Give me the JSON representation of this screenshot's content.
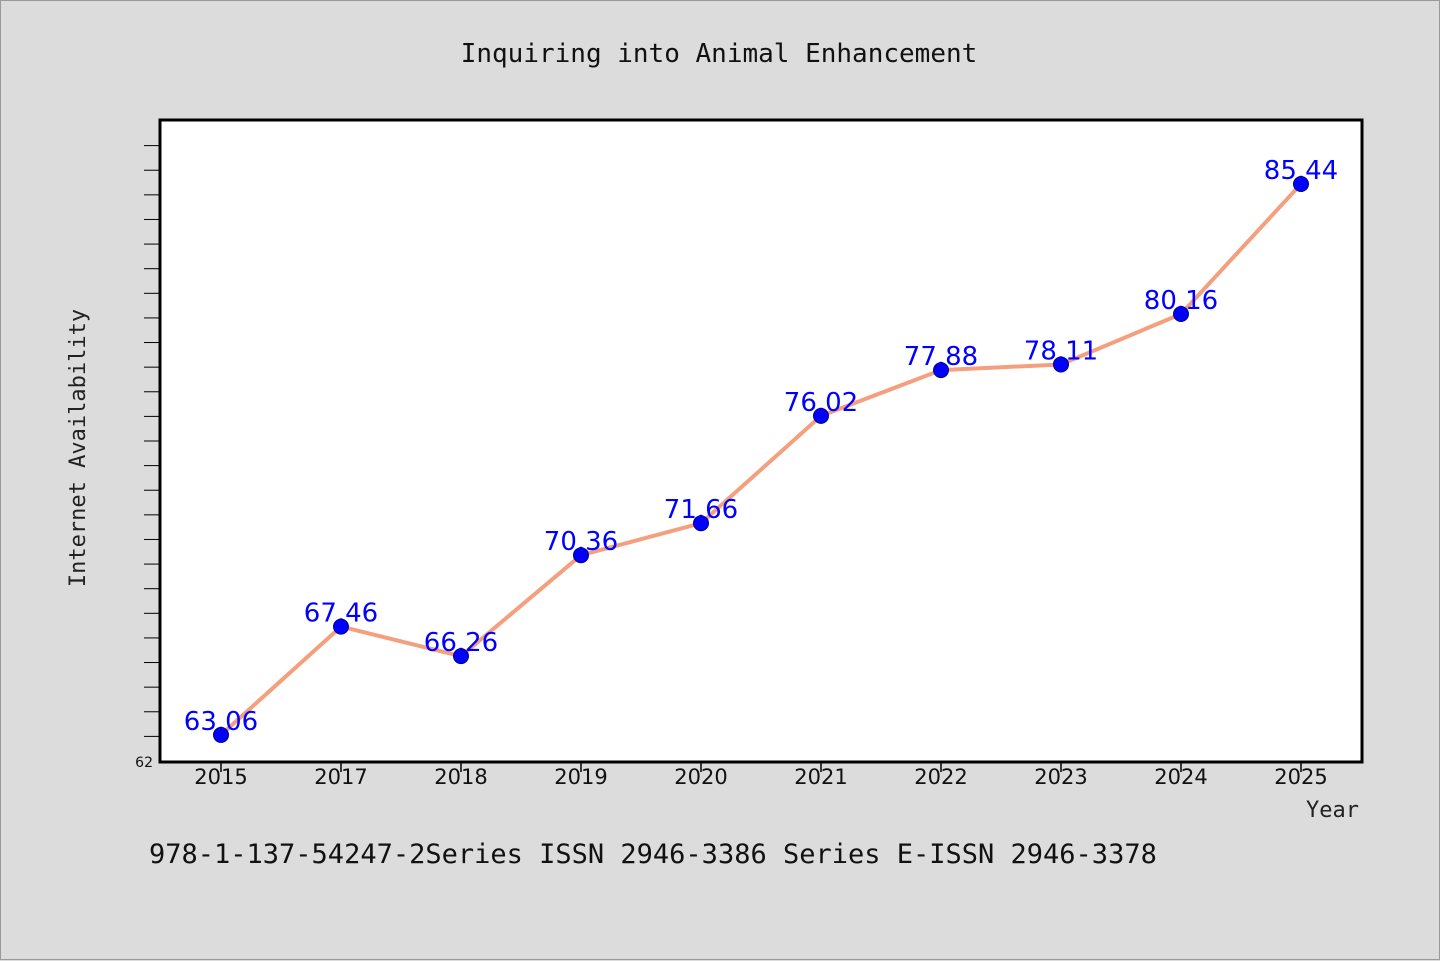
{
  "colors": {
    "background": "#dcdcdc",
    "plot_background": "#ffffff",
    "line": "#f4a07f",
    "marker": "#0000ff",
    "data_label": "#0000ff"
  },
  "footer_text": "978-1-137-54247-2Series ISSN 2946-3386 Series E-ISSN 2946-3378",
  "chart_data": {
    "type": "line",
    "title": "Inquiring into Animal Enhancement",
    "xlabel": "Year",
    "ylabel": "Internet Availability",
    "categories": [
      "2015",
      "2017",
      "2018",
      "2019",
      "2020",
      "2021",
      "2022",
      "2023",
      "2024",
      "2025"
    ],
    "series": [
      {
        "values": [
          63.06,
          67.46,
          66.26,
          70.36,
          71.66,
          76.02,
          77.88,
          78.11,
          80.16,
          85.44
        ],
        "data_labels": [
          "63.06",
          "67.46",
          "66.26",
          "70.36",
          "71.66",
          "76.02",
          "77.88",
          "78.11",
          "80.16",
          "85.44"
        ]
      }
    ],
    "ylim": [
      62,
      88
    ],
    "y_min_tick_label": "62",
    "y_minor_tick_step": 1,
    "grid": false,
    "legend": "none",
    "markers": "circle"
  }
}
